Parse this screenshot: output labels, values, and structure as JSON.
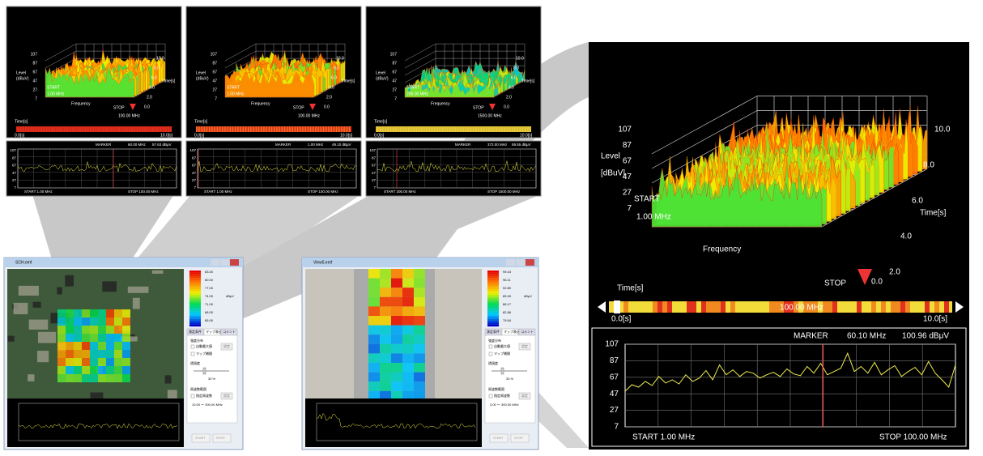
{
  "top_panels": [
    {
      "levels": [
        "107",
        "87",
        "67",
        "47",
        "27",
        "7"
      ],
      "level_label": "Level",
      "unit_label": "(dBuV)",
      "start": "START",
      "start_freq": "1.00 MHz",
      "frequency_label": "Frequency",
      "stop": "STOP",
      "stop_freq": "100.00 MHz",
      "times": [
        "10.0",
        "8.0",
        "6.0",
        "4.0",
        "2.0",
        "0.0"
      ],
      "time_label": "Time[s]",
      "bar_label": "Time[s]",
      "bar_start": "0.0[s]",
      "bar_end": "10.0[s]",
      "marker": "MARKER",
      "marker_freq": "60.00 MHz",
      "marker_level": "57.63 dBμV",
      "spec_start": "START  1.00 MHz",
      "spec_stop": "STOP  100.00 MHz"
    },
    {
      "levels": [
        "107",
        "87",
        "67",
        "47",
        "27",
        "7"
      ],
      "level_label": "Level",
      "unit_label": "(dBuV)",
      "start": "START",
      "start_freq": "1.00 MHz",
      "frequency_label": "Frequency",
      "stop": "STOP",
      "stop_freq": "100.00 MHz",
      "times": [
        "10.0",
        "8.0",
        "6.0",
        "4.0",
        "2.0",
        "0.0"
      ],
      "time_label": "Time[s]",
      "bar_label": "Time[s]",
      "bar_start": "0.0[s]",
      "bar_end": "10.0[s]",
      "marker": "MARKER",
      "marker_freq": "1.00 MHz",
      "marker_level": "49.10 dBμV",
      "spec_start": "START  1.00 MHz",
      "spec_stop": "STOP  100.00 MHz"
    },
    {
      "levels": [
        "107",
        "87",
        "67",
        "47",
        "27",
        "7"
      ],
      "level_label": "Level",
      "unit_label": "(dBuV)",
      "start": "START",
      "start_freq": "200.00 MHz",
      "frequency_label": "Frequency",
      "stop": "STOP",
      "stop_freq": "1500.00 MHz",
      "times": [
        "10.0",
        "8.0",
        "6.0",
        "4.0",
        "2.0",
        "0.0"
      ],
      "time_label": "Time[s]",
      "bar_label": "Time[s]",
      "bar_start": "0.0[s]",
      "bar_end": "10.0[s]",
      "marker": "MARKER",
      "marker_freq": "372.00 MHz",
      "marker_level": "59.55 dBμV",
      "spec_start": "START  200.00 MHz",
      "spec_stop": "STOP  1500.00 MHz"
    }
  ],
  "main": {
    "levels": [
      "107",
      "87",
      "67",
      "47",
      "27",
      "7"
    ],
    "level_label": "Level",
    "unit_label": "[dBuV]",
    "start": "START",
    "start_freq": "1.00 MHz",
    "frequency_label": "Frequency",
    "stop": "STOP",
    "stop_time": "0.0",
    "times": [
      "10.0",
      "8.0",
      "6.0",
      "4.0",
      "2.0"
    ],
    "time_label": "Time[s]",
    "bar_label": "Time[s]",
    "bar_start": "0.0[s]",
    "bar_center": "100.00 MHz",
    "bar_end": "10.0[s]",
    "spectrum": {
      "marker": "MARKER",
      "marker_freq": "60.10 MHz",
      "marker_level": "100.96 dBμV",
      "yticks": [
        107,
        87,
        67,
        47,
        27,
        7
      ],
      "ylim": [
        7,
        107
      ],
      "start": "START   1.00 MHz",
      "stop": "STOP   100.00 MHz",
      "trace": [
        50,
        58,
        55,
        62,
        57,
        68,
        60,
        64,
        59,
        70,
        62,
        66,
        75,
        64,
        82,
        70,
        76,
        68,
        74,
        72,
        66,
        70,
        73,
        68,
        77,
        71,
        69,
        80,
        72,
        84,
        70,
        74,
        78,
        96,
        74,
        80,
        72,
        85,
        70,
        76,
        81,
        68,
        74,
        79,
        70,
        86,
        72,
        64,
        55,
        82
      ]
    }
  },
  "windows": [
    {
      "title": "SCH.emf",
      "legend": [
        "83.00",
        "80.00",
        "77.00",
        "74.00",
        "71.00",
        "68.00",
        "65.00"
      ],
      "unit": "dBμV",
      "tabs": [
        "測定条件",
        "マップ表示",
        "コメント"
      ],
      "intensity": "強度分布",
      "auto_max": "自動最大値",
      "set": "設定",
      "interp": "マップ補間",
      "transparency": "透過度",
      "transparency_value": "30 %",
      "freq_range": "周波数範囲",
      "specified": "指定周波数",
      "set2": "設定",
      "range": "10.00 ～ 300.00 MHz",
      "start_btn": "START",
      "stop_btn": "STOP"
    },
    {
      "title": "View5.emf",
      "legend": [
        "99.43",
        "96.11",
        "92.80",
        "89.49",
        "86.17",
        "82.86",
        "79.54"
      ],
      "unit": "dBμV",
      "tabs": [
        "測定条件",
        "マップ表示",
        "コメント"
      ],
      "intensity": "強度分布",
      "auto_max": "自動最大値",
      "set": "設定",
      "interp": "マップ補間",
      "transparency": "透過度",
      "transparency_value": "30 %",
      "freq_range": "周波数範囲",
      "specified": "指定周波数",
      "set2": "設定",
      "range": "3.00 ～ 300.00 MHz",
      "start_btn": "START",
      "stop_btn": "STOP"
    }
  ]
}
